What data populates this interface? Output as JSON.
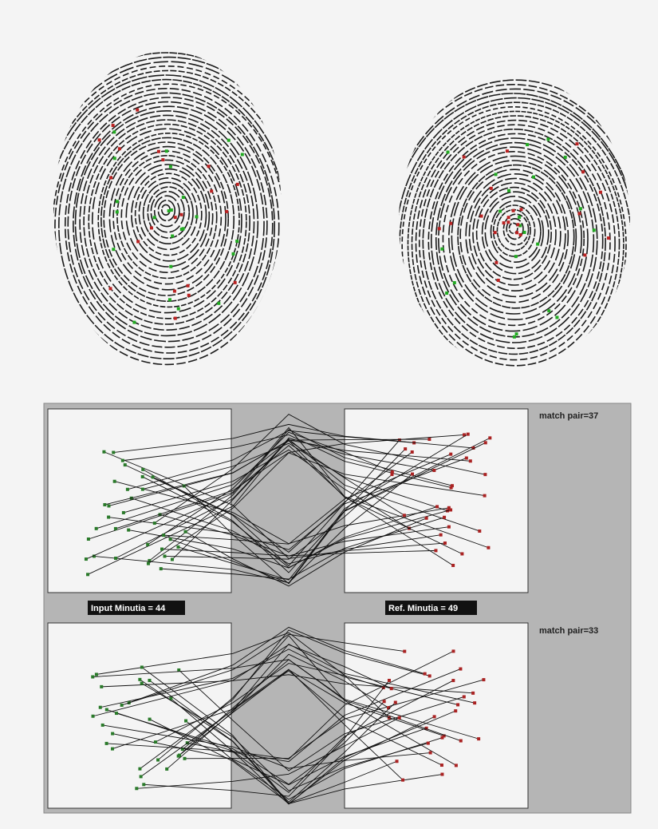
{
  "panels": {
    "top_match": "match pair=37",
    "input_minutia": "Input Minutia = 44",
    "ref_minutia": "Ref. Minutia = 49",
    "bottom_match": "match pair=33"
  }
}
